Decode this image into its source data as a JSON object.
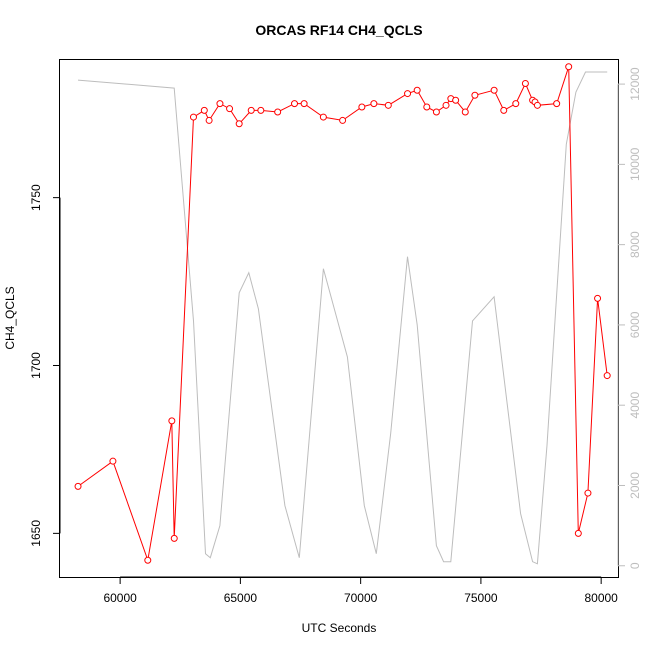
{
  "chart_data": {
    "type": "line",
    "title": "ORCAS RF14 CH4_QCLS",
    "xlabel": "UTC Seconds",
    "ylabel": "CH4_QCLS",
    "xlim": [
      57500,
      80700
    ],
    "ylim": [
      1637,
      1791
    ],
    "y2lim": [
      -280,
      12600
    ],
    "grid": false,
    "x_ticks": [
      60000,
      65000,
      70000,
      75000,
      80000
    ],
    "y_ticks": [
      1650,
      1700,
      1750
    ],
    "y2_ticks": [
      0,
      2000,
      4000,
      6000,
      8000,
      10000,
      12000
    ],
    "series": [
      {
        "axis": "left",
        "color": "#ff0000",
        "marker": "open-circle",
        "x": [
          58250,
          59700,
          61150,
          62150,
          62250,
          63050,
          63500,
          63700,
          64150,
          64550,
          64950,
          65450,
          65850,
          66550,
          67250,
          67650,
          68450,
          69250,
          70050,
          70550,
          71150,
          71950,
          72350,
          72750,
          73150,
          73550,
          73750,
          73950,
          74350,
          74750,
          75550,
          75950,
          76450,
          76850,
          77150,
          77250,
          77350,
          78150,
          78650,
          79050,
          79450,
          79850,
          80250
        ],
        "y": [
          1664,
          1671.5,
          1642,
          1683.5,
          1648.5,
          1774,
          1776,
          1773,
          1778,
          1776.5,
          1772,
          1776,
          1776,
          1775.5,
          1778,
          1778,
          1774,
          1773,
          1777,
          1778,
          1777.5,
          1781,
          1782,
          1777,
          1775.5,
          1777.5,
          1779.5,
          1779,
          1775.5,
          1780.5,
          1782,
          1776,
          1778,
          1784,
          1779,
          1778.5,
          1777.5,
          1778,
          1789,
          1650,
          1662,
          1720,
          1697
        ]
      },
      {
        "axis": "right",
        "color": "#bdbdbd",
        "marker": "none",
        "x": [
          58250,
          62250,
          63050,
          63550,
          63750,
          64150,
          64950,
          65350,
          65750,
          66850,
          67450,
          68450,
          69450,
          70150,
          70650,
          71250,
          71950,
          72350,
          73150,
          73450,
          73650,
          73750,
          74650,
          75550,
          76650,
          77150,
          77350,
          77750,
          78550,
          78950,
          79350,
          80250
        ],
        "y": [
          12100,
          11900,
          6100,
          300,
          200,
          1000,
          6800,
          7300,
          6400,
          1500,
          200,
          7400,
          5200,
          1500,
          300,
          3300,
          7700,
          6000,
          500,
          100,
          100,
          100,
          6100,
          6700,
          1300,
          100,
          50,
          3000,
          10500,
          11800,
          12300,
          12300
        ]
      }
    ]
  }
}
